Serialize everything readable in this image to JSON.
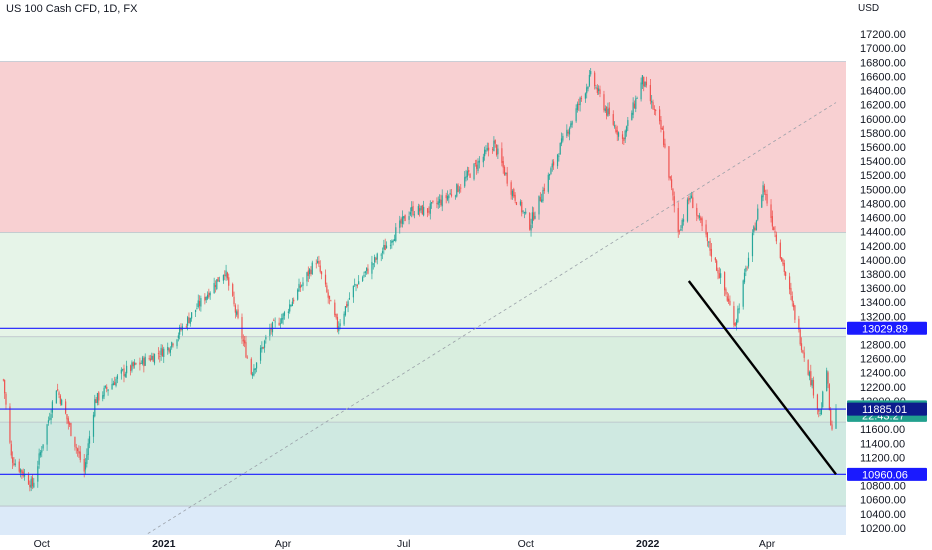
{
  "header": {
    "title": "US 100 Cash CFD, 1D, FX",
    "currency": "USD"
  },
  "colors": {
    "up": "#26a69a",
    "down": "#ef5350",
    "zone_red": "#f8d0d2",
    "zone_green_light": "#e6f4e8",
    "zone_green": "#d9eedf",
    "zone_teal": "#cfe9e1",
    "zone_blue": "#dceaf9",
    "level_line": "#1a1aff",
    "tag_blue": "#1a1aff",
    "tag_dark": "#0d1b8c",
    "tag_green": "#22a08e"
  },
  "chart_data": {
    "type": "candlestick",
    "title": "US 100 Cash CFD, 1D, FX",
    "currency": "USD",
    "ylim": [
      10100,
      17400
    ],
    "y_ticks": [
      10200,
      10400,
      10600,
      10800,
      11000,
      11200,
      11400,
      11600,
      11800,
      12000,
      12200,
      12400,
      12600,
      12800,
      13000,
      13200,
      13400,
      13600,
      13800,
      14000,
      14200,
      14400,
      14600,
      14800,
      15000,
      15200,
      15400,
      15600,
      15800,
      16000,
      16200,
      16400,
      16600,
      16800,
      17000,
      17200
    ],
    "y_tick_labels": [
      "10200.00",
      "10400.00",
      "10600.00",
      "10800.00",
      "11000.00",
      "11200.00",
      "11400.00",
      "11600.00",
      "11800.00",
      "12000.00",
      "12200.00",
      "12400.00",
      "12600.00",
      "12800.00",
      "13000.00",
      "13200.00",
      "13400.00",
      "13600.00",
      "13800.00",
      "14000.00",
      "14200.00",
      "14400.00",
      "14600.00",
      "14800.00",
      "15000.00",
      "15200.00",
      "15400.00",
      "15600.00",
      "15800.00",
      "16000.00",
      "16200.00",
      "16400.00",
      "16600.00",
      "16800.00",
      "17000.00",
      "17200.00"
    ],
    "x_range": [
      "2020-09-01",
      "2022-05-23"
    ],
    "time_labels": [
      {
        "label": "Oct",
        "date": "2020-10-01",
        "bold": false
      },
      {
        "label": "2021",
        "date": "2021-01-01",
        "bold": true
      },
      {
        "label": "Apr",
        "date": "2021-04-01",
        "bold": false
      },
      {
        "label": "Jul",
        "date": "2021-07-01",
        "bold": false
      },
      {
        "label": "Oct",
        "date": "2021-10-01",
        "bold": false
      },
      {
        "label": "2022",
        "date": "2022-01-01",
        "bold": true
      },
      {
        "label": "Apr",
        "date": "2022-04-01",
        "bold": false
      }
    ],
    "zones": [
      {
        "from": 14390,
        "to": 16810,
        "color": "zone_red"
      },
      {
        "from": 12910,
        "to": 14390,
        "color": "zone_green_light"
      },
      {
        "from": 11700,
        "to": 12910,
        "color": "zone_green"
      },
      {
        "from": 10510,
        "to": 11700,
        "color": "zone_teal"
      },
      {
        "from": 10100,
        "to": 10510,
        "color": "zone_blue"
      }
    ],
    "levels": [
      13029.89,
      11885.01,
      10960.06
    ],
    "price_tags": [
      {
        "value": 13029.89,
        "label": "13029.89",
        "color": "tag_blue"
      },
      {
        "value": 11915.31,
        "label": "11915.31",
        "color": "tag_green"
      },
      {
        "value": 11795,
        "label": "22:43:27",
        "color": "tag_green"
      },
      {
        "value": 11885.01,
        "label": "11885.01",
        "color": "tag_dark"
      },
      {
        "value": 10960.06,
        "label": "10960.06",
        "color": "tag_blue"
      }
    ],
    "trend_line": {
      "start": {
        "date": "2022-02-01",
        "value": 13700
      },
      "end": {
        "date": "2022-05-23",
        "value": 10960
      }
    },
    "dashed_line": {
      "start": {
        "date": "2020-12-20",
        "value": 10120
      },
      "end": {
        "date": "2022-05-23",
        "value": 16230
      }
    },
    "anchors": [
      {
        "date": "2020-09-02",
        "value": 12300
      },
      {
        "date": "2020-09-08",
        "value": 11200
      },
      {
        "date": "2020-09-24",
        "value": 10800
      },
      {
        "date": "2020-10-12",
        "value": 12200
      },
      {
        "date": "2020-11-02",
        "value": 11000
      },
      {
        "date": "2020-11-10",
        "value": 12000
      },
      {
        "date": "2020-12-01",
        "value": 12400
      },
      {
        "date": "2021-01-04",
        "value": 12750
      },
      {
        "date": "2021-01-25",
        "value": 13300
      },
      {
        "date": "2021-02-16",
        "value": 13850
      },
      {
        "date": "2021-03-08",
        "value": 12400
      },
      {
        "date": "2021-03-22",
        "value": 13000
      },
      {
        "date": "2021-04-01",
        "value": 13200
      },
      {
        "date": "2021-04-26",
        "value": 14000
      },
      {
        "date": "2021-05-12",
        "value": 13050
      },
      {
        "date": "2021-05-24",
        "value": 13600
      },
      {
        "date": "2021-06-14",
        "value": 14100
      },
      {
        "date": "2021-07-06",
        "value": 14700
      },
      {
        "date": "2021-07-19",
        "value": 14700
      },
      {
        "date": "2021-08-10",
        "value": 15000
      },
      {
        "date": "2021-09-07",
        "value": 15650
      },
      {
        "date": "2021-09-20",
        "value": 15000
      },
      {
        "date": "2021-10-04",
        "value": 14500
      },
      {
        "date": "2021-10-27",
        "value": 15600
      },
      {
        "date": "2021-11-19",
        "value": 16600
      },
      {
        "date": "2021-12-01",
        "value": 16100
      },
      {
        "date": "2021-12-13",
        "value": 15700
      },
      {
        "date": "2021-12-28",
        "value": 16550
      },
      {
        "date": "2022-01-12",
        "value": 15800
      },
      {
        "date": "2022-01-24",
        "value": 14400
      },
      {
        "date": "2022-02-02",
        "value": 14900
      },
      {
        "date": "2022-02-24",
        "value": 13800
      },
      {
        "date": "2022-03-08",
        "value": 13100
      },
      {
        "date": "2022-03-29",
        "value": 15050
      },
      {
        "date": "2022-04-11",
        "value": 14100
      },
      {
        "date": "2022-04-27",
        "value": 12800
      },
      {
        "date": "2022-05-11",
        "value": 11800
      },
      {
        "date": "2022-05-16",
        "value": 12450
      },
      {
        "date": "2022-05-19",
        "value": 11600
      },
      {
        "date": "2022-05-23",
        "value": 11900
      }
    ]
  }
}
